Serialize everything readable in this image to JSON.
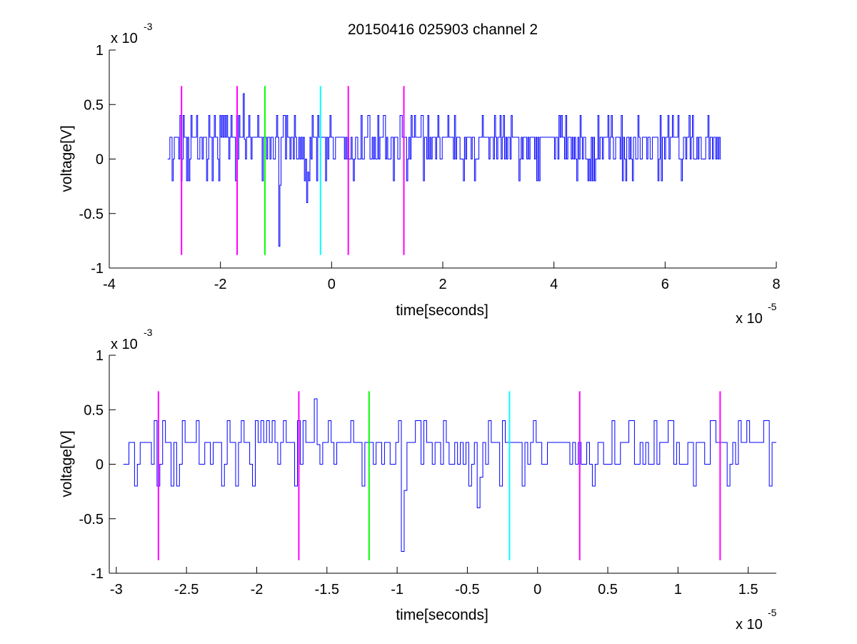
{
  "figure": {
    "title": "20150416 025903 channel 2",
    "background": "#ffffff"
  },
  "colors": {
    "signal": "#0000ff",
    "marker_magenta": "#ff00ff",
    "marker_green": "#00ff00",
    "marker_cyan": "#00ffff",
    "axis": "#000000"
  },
  "chart_data": [
    {
      "type": "line",
      "title": "20150416 025903 channel 2",
      "xlabel": "time[seconds]",
      "ylabel": "voltage[V]",
      "x_exponent": "x 10",
      "x_exponent_power": "-5",
      "y_exponent": "x 10",
      "y_exponent_power": "-3",
      "xlim": [
        -4,
        8
      ],
      "ylim": [
        -1,
        1
      ],
      "x_ticks": [
        -4,
        -2,
        0,
        2,
        4,
        6,
        8
      ],
      "x_tick_labels": [
        "-4",
        "-2",
        "0",
        "2",
        "4",
        "6",
        "8"
      ],
      "y_ticks": [
        -1,
        -0.5,
        0,
        0.5,
        1
      ],
      "y_tick_labels": [
        "-1",
        "-0.5",
        "0",
        "0.5",
        "1"
      ],
      "grid": false,
      "signal_range_x": [
        -2.95,
        7.0
      ],
      "signal_levels": [
        -0.8,
        -0.4,
        -0.2,
        0,
        0.2,
        0.4,
        0.6
      ],
      "signal_spikes": [
        {
          "x": -0.95,
          "y": -0.8
        },
        {
          "x": -0.45,
          "y": -0.4
        },
        {
          "x": -1.6,
          "y": 0.6
        }
      ],
      "markers": [
        {
          "x": -2.7,
          "y_range": [
            -0.88,
            0.67
          ],
          "color": "magenta"
        },
        {
          "x": -1.7,
          "y_range": [
            -0.88,
            0.67
          ],
          "color": "magenta"
        },
        {
          "x": -1.2,
          "y_range": [
            -0.88,
            0.67
          ],
          "color": "green"
        },
        {
          "x": -0.2,
          "y_range": [
            -0.88,
            0.67
          ],
          "color": "cyan"
        },
        {
          "x": 0.3,
          "y_range": [
            -0.88,
            0.67
          ],
          "color": "magenta"
        },
        {
          "x": 1.3,
          "y_range": [
            -0.88,
            0.67
          ],
          "color": "magenta"
        }
      ]
    },
    {
      "type": "line",
      "title": "",
      "xlabel": "time[seconds]",
      "ylabel": "voltage[V]",
      "x_exponent": "x 10",
      "x_exponent_power": "-5",
      "y_exponent": "x 10",
      "y_exponent_power": "-3",
      "xlim": [
        -3.05,
        1.7
      ],
      "ylim": [
        -1,
        1
      ],
      "x_ticks": [
        -3,
        -2.5,
        -2,
        -1.5,
        -1,
        -0.5,
        0,
        0.5,
        1,
        1.5
      ],
      "x_tick_labels": [
        "-3",
        "-2.5",
        "-2",
        "-1.5",
        "-1",
        "-0.5",
        "0",
        "0.5",
        "1",
        "1.5"
      ],
      "y_ticks": [
        -1,
        -0.5,
        0,
        0.5,
        1
      ],
      "y_tick_labels": [
        "-1",
        "-0.5",
        "0",
        "0.5",
        "1"
      ],
      "grid": false,
      "signal_range_x": [
        -2.95,
        1.7
      ],
      "signal_levels": [
        -0.8,
        -0.4,
        -0.2,
        0,
        0.2,
        0.4,
        0.6
      ],
      "signal_spikes": [
        {
          "x": -0.98,
          "y": -0.8
        },
        {
          "x": -0.44,
          "y": -0.4
        },
        {
          "x": -1.6,
          "y": 0.6
        }
      ],
      "markers": [
        {
          "x": -2.7,
          "y_range": [
            -0.88,
            0.67
          ],
          "color": "magenta"
        },
        {
          "x": -1.7,
          "y_range": [
            -0.88,
            0.67
          ],
          "color": "magenta"
        },
        {
          "x": -1.2,
          "y_range": [
            -0.88,
            0.67
          ],
          "color": "green"
        },
        {
          "x": -0.2,
          "y_range": [
            -0.88,
            0.67
          ],
          "color": "cyan"
        },
        {
          "x": 0.3,
          "y_range": [
            -0.88,
            0.67
          ],
          "color": "magenta"
        },
        {
          "x": 1.3,
          "y_range": [
            -0.88,
            0.67
          ],
          "color": "magenta"
        }
      ]
    }
  ]
}
